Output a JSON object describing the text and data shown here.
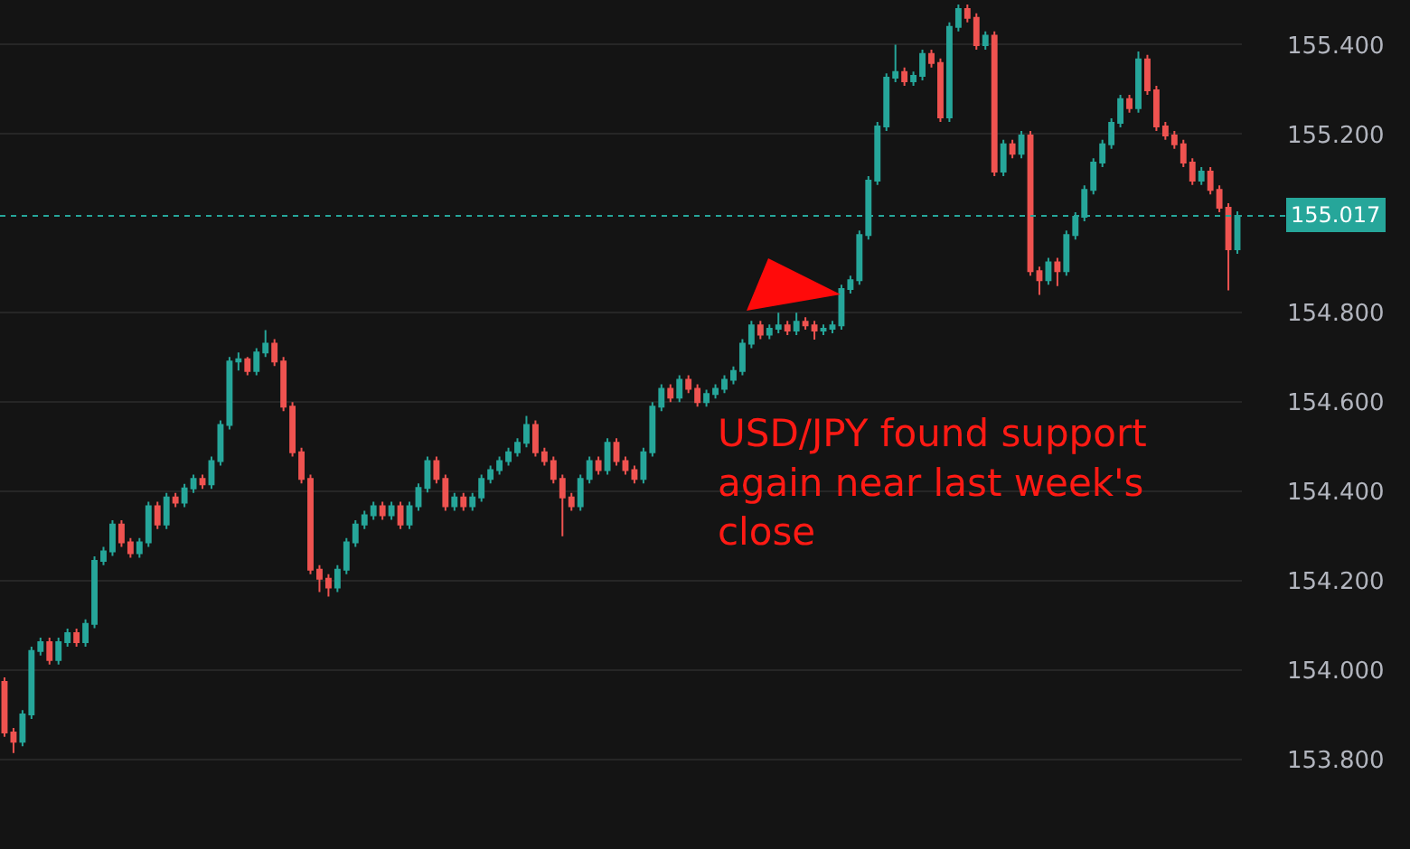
{
  "chart_data": {
    "type": "candlestick",
    "categories": [
      null,
      null,
      null,
      null,
      null,
      null,
      null,
      null,
      null,
      null,
      null,
      null,
      null,
      null,
      null,
      null,
      null,
      null,
      null,
      null,
      null,
      null,
      null,
      null,
      null,
      null,
      null,
      null,
      null,
      null,
      null,
      null,
      null,
      null,
      null,
      null,
      null,
      null,
      null,
      null,
      null,
      null,
      null,
      null,
      null,
      null,
      null,
      null,
      null,
      null,
      null,
      null,
      null,
      null,
      null,
      null,
      null,
      null,
      null,
      null,
      null,
      null,
      null,
      null,
      null,
      null,
      null,
      null,
      null,
      null,
      null,
      null,
      null,
      null,
      null,
      null,
      null,
      null,
      null,
      null,
      null,
      null,
      null,
      null,
      null,
      null,
      null,
      null,
      null,
      null,
      null,
      null,
      null,
      null,
      null,
      null,
      null,
      null,
      null,
      null,
      null,
      null,
      null,
      null,
      null,
      null,
      null,
      null,
      null,
      null,
      null,
      null,
      null,
      null,
      null,
      null,
      null,
      null,
      null,
      null,
      null,
      null,
      null,
      null,
      null,
      null,
      null,
      null,
      null,
      null,
      null,
      null,
      null,
      null,
      null,
      null,
      null,
      null
    ],
    "ohlc": [
      [
        153.974,
        153.984,
        153.851,
        153.861
      ],
      [
        153.861,
        153.871,
        153.815,
        153.84
      ],
      [
        153.84,
        153.911,
        153.83,
        153.901
      ],
      [
        153.901,
        154.053,
        153.891,
        154.043
      ],
      [
        154.043,
        154.073,
        154.033,
        154.063
      ],
      [
        154.063,
        154.073,
        154.013,
        154.023
      ],
      [
        154.023,
        154.073,
        154.013,
        154.063
      ],
      [
        154.063,
        154.093,
        154.053,
        154.083
      ],
      [
        154.083,
        154.093,
        154.053,
        154.063
      ],
      [
        154.063,
        154.114,
        154.053,
        154.104
      ],
      [
        154.104,
        154.255,
        154.094,
        154.245
      ],
      [
        154.245,
        154.276,
        154.235,
        154.266
      ],
      [
        154.266,
        154.336,
        154.256,
        154.326
      ],
      [
        154.326,
        154.336,
        154.276,
        154.286
      ],
      [
        154.286,
        154.296,
        154.252,
        154.262
      ],
      [
        154.262,
        154.296,
        154.252,
        154.286
      ],
      [
        154.286,
        154.377,
        154.276,
        154.367
      ],
      [
        154.367,
        154.377,
        154.316,
        154.326
      ],
      [
        154.326,
        154.397,
        154.316,
        154.387
      ],
      [
        154.387,
        154.397,
        154.365,
        154.375
      ],
      [
        154.375,
        154.417,
        154.365,
        154.407
      ],
      [
        154.407,
        154.438,
        154.397,
        154.428
      ],
      [
        154.428,
        154.438,
        154.406,
        154.416
      ],
      [
        154.416,
        154.478,
        154.406,
        154.468
      ],
      [
        154.468,
        154.559,
        154.458,
        154.549
      ],
      [
        154.549,
        154.701,
        154.539,
        154.691
      ],
      [
        154.691,
        154.711,
        154.671,
        154.696
      ],
      [
        154.696,
        154.701,
        154.66,
        154.67
      ],
      [
        154.67,
        154.721,
        154.66,
        154.711
      ],
      [
        154.711,
        154.761,
        154.701,
        154.731
      ],
      [
        154.731,
        154.741,
        154.681,
        154.691
      ],
      [
        154.691,
        154.701,
        154.58,
        154.59
      ],
      [
        154.59,
        154.6,
        154.478,
        154.488
      ],
      [
        154.488,
        154.498,
        154.418,
        154.428
      ],
      [
        154.428,
        154.438,
        154.215,
        154.225
      ],
      [
        154.225,
        154.235,
        154.175,
        154.205
      ],
      [
        154.205,
        154.215,
        154.165,
        154.185
      ],
      [
        154.185,
        154.235,
        154.175,
        154.225
      ],
      [
        154.225,
        154.296,
        154.215,
        154.286
      ],
      [
        154.286,
        154.336,
        154.276,
        154.326
      ],
      [
        154.326,
        154.357,
        154.316,
        154.347
      ],
      [
        154.347,
        154.377,
        154.337,
        154.367
      ],
      [
        154.367,
        154.377,
        154.337,
        154.347
      ],
      [
        154.347,
        154.377,
        154.337,
        154.367
      ],
      [
        154.367,
        154.377,
        154.316,
        154.326
      ],
      [
        154.326,
        154.377,
        154.316,
        154.367
      ],
      [
        154.367,
        154.418,
        154.357,
        154.408
      ],
      [
        154.408,
        154.478,
        154.398,
        154.468
      ],
      [
        154.468,
        154.478,
        154.418,
        154.428
      ],
      [
        154.428,
        154.438,
        154.357,
        154.367
      ],
      [
        154.367,
        154.397,
        154.357,
        154.387
      ],
      [
        154.387,
        154.397,
        154.357,
        154.367
      ],
      [
        154.367,
        154.397,
        154.357,
        154.387
      ],
      [
        154.387,
        154.438,
        154.377,
        154.428
      ],
      [
        154.428,
        154.458,
        154.418,
        154.448
      ],
      [
        154.448,
        154.478,
        154.438,
        154.468
      ],
      [
        154.468,
        154.498,
        154.458,
        154.488
      ],
      [
        154.488,
        154.519,
        154.478,
        154.509
      ],
      [
        154.509,
        154.569,
        154.499,
        154.549
      ],
      [
        154.549,
        154.559,
        154.478,
        154.488
      ],
      [
        154.488,
        154.498,
        154.458,
        154.468
      ],
      [
        154.468,
        154.478,
        154.418,
        154.428
      ],
      [
        154.428,
        154.438,
        154.3,
        154.387
      ],
      [
        154.387,
        154.397,
        154.357,
        154.367
      ],
      [
        154.367,
        154.438,
        154.357,
        154.428
      ],
      [
        154.428,
        154.478,
        154.418,
        154.468
      ],
      [
        154.468,
        154.478,
        154.438,
        154.448
      ],
      [
        154.448,
        154.519,
        154.438,
        154.509
      ],
      [
        154.509,
        154.519,
        154.458,
        154.468
      ],
      [
        154.468,
        154.478,
        154.438,
        154.448
      ],
      [
        154.448,
        154.458,
        154.418,
        154.428
      ],
      [
        154.428,
        154.498,
        154.418,
        154.488
      ],
      [
        154.488,
        154.6,
        154.478,
        154.59
      ],
      [
        154.59,
        154.64,
        154.58,
        154.63
      ],
      [
        154.63,
        154.64,
        154.6,
        154.61
      ],
      [
        154.61,
        154.66,
        154.6,
        154.65
      ],
      [
        154.65,
        154.66,
        154.62,
        154.63
      ],
      [
        154.63,
        154.64,
        154.59,
        154.6
      ],
      [
        154.6,
        154.628,
        154.59,
        154.618
      ],
      [
        154.618,
        154.64,
        154.608,
        154.63
      ],
      [
        154.63,
        154.66,
        154.62,
        154.65
      ],
      [
        154.65,
        154.68,
        154.64,
        154.67
      ],
      [
        154.67,
        154.741,
        154.66,
        154.731
      ],
      [
        154.731,
        154.782,
        154.721,
        154.772
      ],
      [
        154.772,
        154.782,
        154.741,
        154.751
      ],
      [
        154.751,
        154.774,
        154.741,
        154.764
      ],
      [
        154.764,
        154.8,
        154.754,
        154.772
      ],
      [
        154.772,
        154.782,
        154.75,
        154.76
      ],
      [
        154.76,
        154.8,
        154.75,
        154.78
      ],
      [
        154.78,
        154.79,
        154.762,
        154.772
      ],
      [
        154.772,
        154.782,
        154.74,
        154.76
      ],
      [
        154.76,
        154.774,
        154.75,
        154.764
      ],
      [
        154.764,
        154.782,
        154.754,
        154.772
      ],
      [
        154.772,
        154.863,
        154.762,
        154.853
      ],
      [
        154.853,
        154.883,
        154.843,
        154.873
      ],
      [
        154.873,
        154.984,
        154.863,
        154.974
      ],
      [
        154.974,
        155.106,
        154.964,
        155.096
      ],
      [
        155.096,
        155.227,
        155.086,
        155.217
      ],
      [
        155.217,
        155.336,
        155.207,
        155.326
      ],
      [
        155.326,
        155.4,
        155.316,
        155.339
      ],
      [
        155.339,
        155.349,
        155.308,
        155.318
      ],
      [
        155.318,
        155.34,
        155.308,
        155.33
      ],
      [
        155.33,
        155.389,
        155.32,
        155.379
      ],
      [
        155.379,
        155.389,
        155.349,
        155.359
      ],
      [
        155.359,
        155.369,
        155.227,
        155.237
      ],
      [
        155.237,
        155.45,
        155.227,
        155.44
      ],
      [
        155.44,
        155.49,
        155.43,
        155.48
      ],
      [
        155.48,
        155.49,
        155.45,
        155.46
      ],
      [
        155.46,
        155.47,
        155.389,
        155.399
      ],
      [
        155.399,
        155.43,
        155.389,
        155.42
      ],
      [
        155.42,
        155.43,
        155.106,
        155.116
      ],
      [
        155.116,
        155.187,
        155.106,
        155.177
      ],
      [
        155.177,
        155.187,
        155.146,
        155.156
      ],
      [
        155.156,
        155.207,
        155.146,
        155.197
      ],
      [
        155.197,
        155.207,
        154.883,
        154.893
      ],
      [
        154.893,
        154.903,
        154.84,
        154.873
      ],
      [
        154.873,
        154.923,
        154.863,
        154.913
      ],
      [
        154.913,
        154.923,
        154.86,
        154.893
      ],
      [
        154.893,
        154.984,
        154.883,
        154.974
      ],
      [
        154.974,
        155.025,
        154.964,
        155.015
      ],
      [
        155.015,
        155.085,
        155.005,
        155.075
      ],
      [
        155.075,
        155.146,
        155.065,
        155.136
      ],
      [
        155.136,
        155.187,
        155.126,
        155.177
      ],
      [
        155.177,
        155.235,
        155.167,
        155.225
      ],
      [
        155.225,
        155.288,
        155.215,
        155.278
      ],
      [
        155.278,
        155.288,
        155.248,
        155.258
      ],
      [
        155.258,
        155.385,
        155.248,
        155.367
      ],
      [
        155.367,
        155.377,
        155.288,
        155.298
      ],
      [
        155.298,
        155.308,
        155.207,
        155.217
      ],
      [
        155.217,
        155.227,
        155.187,
        155.197
      ],
      [
        155.197,
        155.207,
        155.167,
        155.177
      ],
      [
        155.177,
        155.187,
        155.126,
        155.136
      ],
      [
        155.136,
        155.146,
        155.086,
        155.096
      ],
      [
        155.096,
        155.126,
        155.086,
        155.116
      ],
      [
        155.116,
        155.126,
        155.065,
        155.075
      ],
      [
        155.075,
        155.085,
        155.025,
        155.035
      ],
      [
        155.035,
        155.045,
        154.85,
        154.942
      ],
      [
        154.942,
        155.027,
        154.932,
        155.017
      ]
    ],
    "ylim": [
      153.6,
      155.5
    ],
    "yticks": [
      {
        "value": 153.8,
        "label": "153.800"
      },
      {
        "value": 154.0,
        "label": "154.000"
      },
      {
        "value": 154.2,
        "label": "154.200"
      },
      {
        "value": 154.4,
        "label": "154.400"
      },
      {
        "value": 154.6,
        "label": "154.600"
      },
      {
        "value": 154.8,
        "label": "154.800"
      },
      {
        "value": 155.2,
        "label": "155.200"
      },
      {
        "value": 155.4,
        "label": "155.400"
      }
    ],
    "tick_labels": "y",
    "grid": "y",
    "ref_lines": [
      {
        "axis": "y",
        "value": 155.017,
        "label": "155.017",
        "color": "#26a69a",
        "line_style": "dotted"
      }
    ],
    "annotations": [
      "USD/JPY found support again near last week's close"
    ]
  }
}
